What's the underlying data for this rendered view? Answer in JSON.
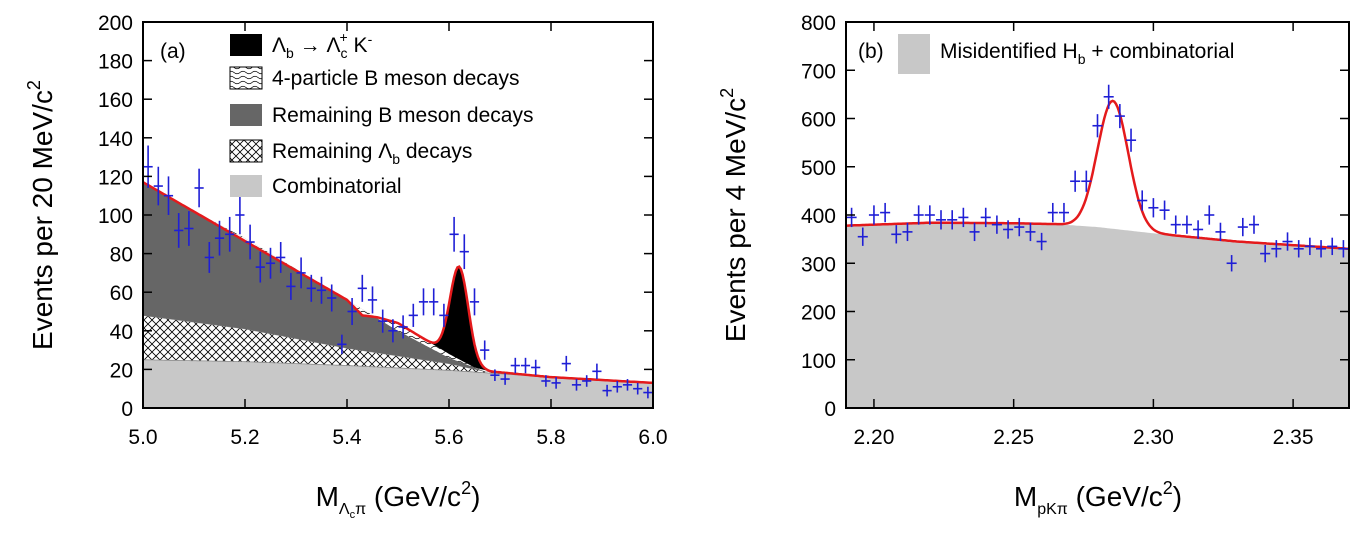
{
  "chart_data": [
    {
      "type": "area",
      "panel_label": "(a)",
      "xlabel_main": "M",
      "xlabel_sub": "Λ",
      "xlabel_subsub": "c",
      "xlabel_sub2": "π",
      "xlabel_tail": " (GeV/c",
      "xlabel_sup": "2",
      "xlabel_end": ")",
      "ylabel_main": "Events per 20 MeV/c",
      "ylabel_sup": "2",
      "xlim": [
        5.0,
        6.0
      ],
      "ylim": [
        0,
        200
      ],
      "xticks": [
        "5.0",
        "5.2",
        "5.4",
        "5.6",
        "5.8",
        "6.0"
      ],
      "yticks": [
        "0",
        "20",
        "40",
        "60",
        "80",
        "100",
        "120",
        "140",
        "160",
        "180",
        "200"
      ],
      "legend": [
        {
          "key": "signal",
          "text": "Λ",
          "sub": "b",
          "mid": " → Λ",
          "sub2": "c",
          "sup2": "+",
          "tail": " K",
          "sup3": "-"
        },
        {
          "key": "fourbody",
          "text": "4-particle B meson decays"
        },
        {
          "key": "bmeson",
          "text": "Remaining B meson decays"
        },
        {
          "key": "lambdab",
          "text": "Remaining Λ",
          "sub": "b",
          "tail": " decays"
        },
        {
          "key": "combinatorial",
          "text": "Combinatorial"
        }
      ],
      "components": {
        "combinatorial": {
          "x": [
            5.0,
            5.2,
            5.4,
            5.6,
            5.8,
            6.0
          ],
          "y": [
            25,
            24,
            22,
            19.5,
            16,
            13
          ]
        },
        "lambdab_top": {
          "x": [
            5.0,
            5.2,
            5.4,
            5.6,
            5.67,
            5.8,
            6.0
          ],
          "y": [
            48,
            41,
            31,
            23,
            19,
            16,
            13
          ]
        },
        "bmeson_top": {
          "x": [
            5.0,
            5.1,
            5.2,
            5.3,
            5.4,
            5.5,
            5.6,
            5.67,
            5.8,
            6.0
          ],
          "y": [
            117,
            102,
            88,
            72,
            56,
            40,
            26,
            19,
            16,
            13
          ]
        },
        "fourbody_top": {
          "x": [
            5.0,
            5.4,
            5.43,
            5.46,
            5.5,
            5.55,
            5.6,
            5.65,
            5.68,
            5.8,
            6.0
          ],
          "y": [
            117,
            56,
            48,
            47,
            44,
            36,
            28,
            21,
            19,
            16,
            13
          ]
        },
        "signal_mean": 5.62,
        "signal_sigma": 0.018,
        "signal_amp": 48
      },
      "data_points": {
        "x": [
          5.01,
          5.03,
          5.05,
          5.07,
          5.09,
          5.11,
          5.13,
          5.15,
          5.17,
          5.19,
          5.21,
          5.23,
          5.25,
          5.27,
          5.29,
          5.31,
          5.33,
          5.35,
          5.37,
          5.39,
          5.41,
          5.43,
          5.45,
          5.47,
          5.49,
          5.51,
          5.53,
          5.55,
          5.57,
          5.59,
          5.61,
          5.63,
          5.65,
          5.67,
          5.69,
          5.71,
          5.73,
          5.75,
          5.77,
          5.79,
          5.81,
          5.83,
          5.85,
          5.87,
          5.89,
          5.91,
          5.93,
          5.95,
          5.97,
          5.99
        ],
        "y": [
          125,
          115,
          110,
          92,
          93,
          114,
          78,
          88,
          90,
          100,
          86,
          73,
          75,
          78,
          63,
          70,
          62,
          61,
          57,
          33,
          50,
          62,
          56,
          45,
          40,
          42,
          48,
          55,
          55,
          48,
          90,
          81,
          55,
          30,
          17,
          15,
          22,
          22,
          21,
          14,
          13,
          23,
          12,
          14,
          19,
          9,
          11,
          12,
          10,
          8
        ],
        "err": [
          11,
          10,
          10,
          9,
          9,
          10,
          8,
          9,
          9,
          10,
          9,
          8,
          8,
          8,
          7,
          8,
          7,
          7,
          7,
          5,
          7,
          7,
          7,
          6,
          6,
          6,
          6,
          7,
          7,
          6,
          9,
          9,
          7,
          5,
          3,
          3,
          4,
          4,
          4,
          3,
          3,
          4,
          3,
          3,
          4,
          3,
          3,
          3,
          3,
          3
        ]
      },
      "colors": {
        "signal": "#000000",
        "bmeson": "#666666",
        "combinatorial": "#c8c8c8",
        "fit": "#e41a1c",
        "data": "#1f1fd6"
      }
    },
    {
      "type": "area",
      "panel_label": "(b)",
      "xlabel_main": "M",
      "xlabel_sub": "pKπ",
      "xlabel_tail": " (GeV/c",
      "xlabel_sup": "2",
      "xlabel_end": ")",
      "ylabel_main": "Events per 4 MeV/c",
      "ylabel_sup": "2",
      "xlim": [
        2.19,
        2.37
      ],
      "ylim": [
        0,
        800
      ],
      "xticks": [
        "2.20",
        "2.25",
        "2.30",
        "2.35"
      ],
      "yticks": [
        "0",
        "100",
        "200",
        "300",
        "400",
        "500",
        "600",
        "700",
        "800"
      ],
      "legend": [
        {
          "key": "background",
          "text": "Misidentified H",
          "sub": "b",
          "tail": " + combinatorial"
        }
      ],
      "components": {
        "background": {
          "x": [
            2.19,
            2.22,
            2.25,
            2.265,
            2.28,
            2.3,
            2.33,
            2.37
          ],
          "y": [
            378,
            384,
            383,
            381,
            375,
            362,
            345,
            330
          ]
        },
        "signal_mean": 2.2855,
        "signal_sigma": 0.0055,
        "signal_amp": 265
      },
      "data_points": {
        "x": [
          2.192,
          2.196,
          2.2,
          2.204,
          2.208,
          2.212,
          2.216,
          2.22,
          2.224,
          2.228,
          2.232,
          2.236,
          2.24,
          2.244,
          2.248,
          2.252,
          2.256,
          2.26,
          2.264,
          2.268,
          2.272,
          2.276,
          2.28,
          2.284,
          2.288,
          2.292,
          2.296,
          2.3,
          2.304,
          2.308,
          2.312,
          2.316,
          2.32,
          2.324,
          2.328,
          2.332,
          2.336,
          2.34,
          2.344,
          2.348,
          2.352,
          2.356,
          2.36,
          2.364,
          2.368
        ],
        "y": [
          395,
          355,
          400,
          405,
          360,
          365,
          400,
          400,
          390,
          390,
          395,
          365,
          395,
          380,
          370,
          375,
          365,
          345,
          405,
          405,
          470,
          470,
          585,
          645,
          605,
          555,
          430,
          415,
          410,
          380,
          380,
          370,
          400,
          365,
          300,
          375,
          380,
          320,
          330,
          345,
          330,
          335,
          330,
          335,
          330
        ],
        "err": [
          20,
          19,
          20,
          20,
          19,
          19,
          20,
          20,
          20,
          20,
          20,
          19,
          20,
          19,
          19,
          19,
          19,
          18,
          20,
          20,
          22,
          22,
          24,
          25,
          25,
          24,
          21,
          20,
          20,
          19,
          19,
          19,
          20,
          19,
          17,
          19,
          19,
          18,
          18,
          19,
          18,
          18,
          18,
          18,
          18
        ]
      },
      "colors": {
        "background": "#c8c8c8",
        "fit": "#e41a1c",
        "data": "#1f1fd6"
      }
    }
  ]
}
